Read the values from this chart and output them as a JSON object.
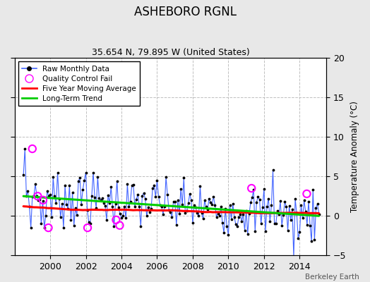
{
  "title": "ASHEBORO RGNL",
  "subtitle": "35.654 N, 79.895 W (United States)",
  "ylabel": "Temperature Anomaly (°C)",
  "credit": "Berkeley Earth",
  "ylim": [
    -5,
    20
  ],
  "yticks": [
    -5,
    0,
    5,
    10,
    15,
    20
  ],
  "xlim": [
    1998.0,
    2015.5
  ],
  "xticks": [
    2000,
    2002,
    2004,
    2006,
    2008,
    2010,
    2012,
    2014
  ],
  "raw_color": "#4466ff",
  "dot_color": "#000000",
  "qc_color": "#ff00ff",
  "moving_avg_color": "#ff0000",
  "trend_color": "#00cc00",
  "bg_color": "#e8e8e8",
  "plot_bg_color": "#ffffff",
  "legend_loc": "upper left",
  "grid_color": "#c0c0c0",
  "grid_style": "--"
}
